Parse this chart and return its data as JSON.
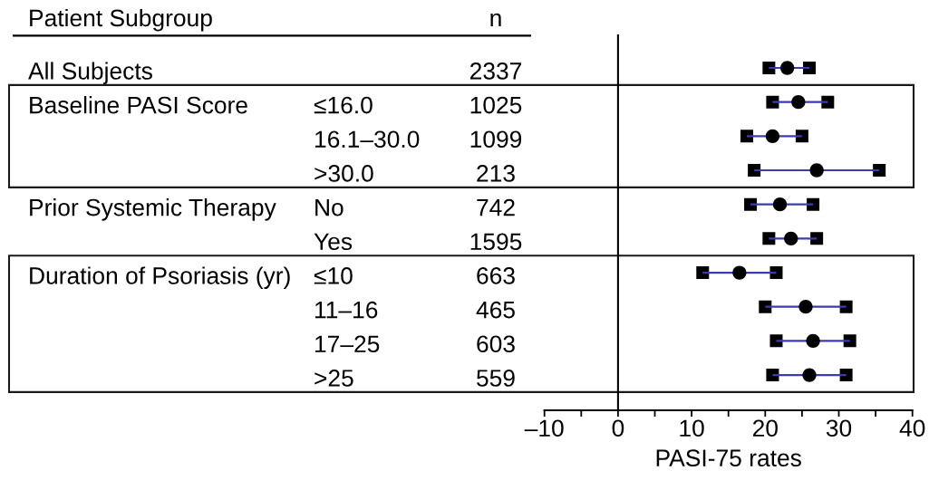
{
  "chart_data": {
    "type": "scatter",
    "orientation": "horizontal",
    "ylabel": "Patient Subgroup",
    "y2label": "n",
    "xlabel": "PASI-75 rates",
    "categories": [
      null,
      "≤16.0",
      "16.1–30.0",
      ">30.0",
      "No",
      "Yes",
      "≤10",
      "11–16",
      "17–25",
      ">25"
    ],
    "y_categories": [
      "All Subjects",
      "Baseline PASI Score",
      null,
      null,
      "Prior Systemic Therapy",
      null,
      "Duration of Psoriasis (yr)",
      null,
      null,
      null
    ],
    "y2_categories": [
      "2337",
      "1025",
      "1099",
      "213",
      "742",
      "1595",
      "663",
      "465",
      "603",
      "559"
    ],
    "values": [
      23,
      24.5,
      21,
      27,
      22,
      23.5,
      16.5,
      25.5,
      26.5,
      26
    ],
    "errors": [
      [
        20.5,
        26
      ],
      [
        21,
        28.5
      ],
      [
        17.5,
        25
      ],
      [
        18.5,
        35.5
      ],
      [
        18,
        26.5
      ],
      [
        20.5,
        27
      ],
      [
        11.5,
        21.5
      ],
      [
        20,
        31
      ],
      [
        21.5,
        31.5
      ],
      [
        21,
        31
      ]
    ],
    "color": "#000000",
    "xlim": [
      -10,
      40
    ],
    "xticks": [
      {
        "value": -10,
        "label": "–10"
      },
      {
        "value": -5,
        "label": null
      },
      0,
      {
        "value": 5,
        "label": null
      },
      10,
      {
        "value": 15,
        "label": null
      },
      20,
      {
        "value": 25,
        "label": null
      },
      30,
      {
        "value": 35,
        "label": null
      },
      40
    ],
    "ref_lines": [
      {
        "axis": "x",
        "value": 0,
        "color": "#000000"
      }
    ],
    "marker": "circle"
  }
}
